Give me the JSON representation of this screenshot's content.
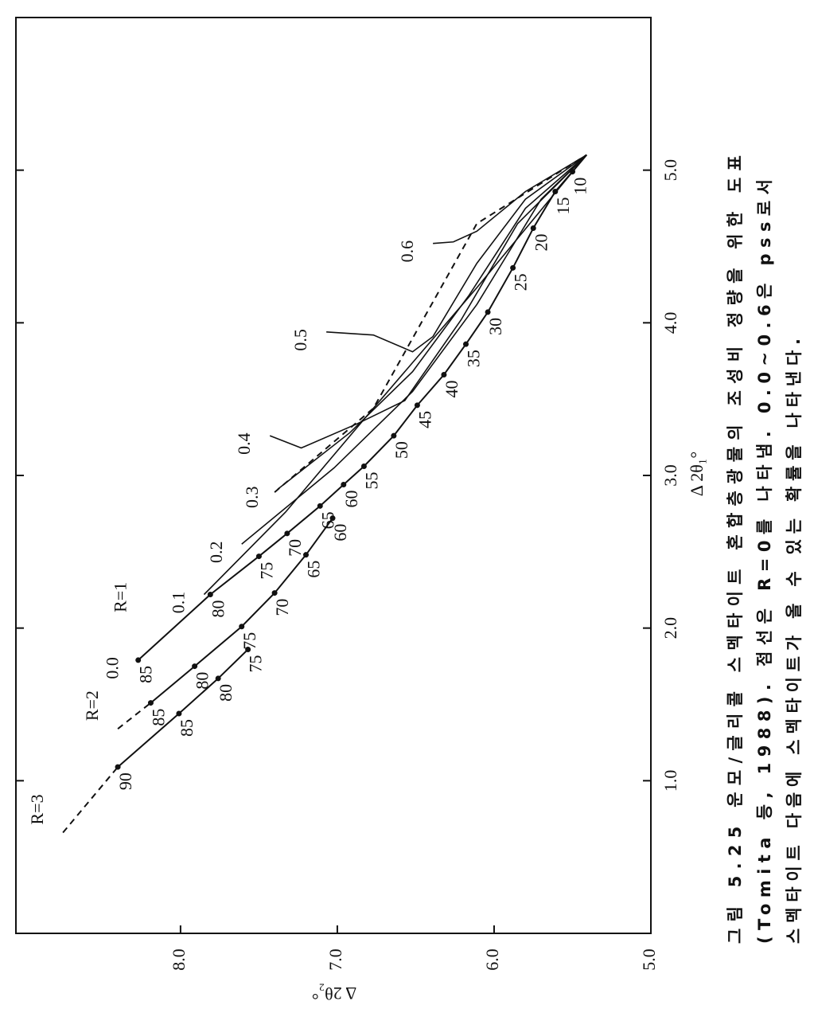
{
  "chart_data": {
    "type": "line",
    "xlabel": "Δ 2θ₁°",
    "ylabel": "Δ 2θ₂°",
    "xlim": [
      0,
      6.0
    ],
    "ylim": [
      5.0,
      9.05
    ],
    "xticks": [
      {
        "value": 1,
        "label": "1.0"
      },
      {
        "value": 2,
        "label": "2.0"
      },
      {
        "value": 3,
        "label": "3.0"
      },
      {
        "value": 4,
        "label": "4.0"
      },
      {
        "value": 5,
        "label": "5.0"
      }
    ],
    "yticks": [
      {
        "value": 5,
        "label": "5.0"
      },
      {
        "value": 6,
        "label": "6.0"
      },
      {
        "value": 7,
        "label": "7.0"
      },
      {
        "value": 8,
        "label": "8.0"
      }
    ],
    "color": "#111111",
    "series": [
      {
        "name": "R=1",
        "lead_dashed": false,
        "x": [
          1.79,
          2.22,
          2.47,
          2.62,
          2.8,
          2.94,
          3.06,
          3.26,
          3.46,
          3.66,
          3.86,
          4.07,
          4.36,
          4.62,
          4.86,
          4.99,
          5.1
        ],
        "values": [
          8.27,
          7.81,
          7.5,
          7.32,
          7.11,
          6.96,
          6.83,
          6.64,
          6.49,
          6.32,
          6.18,
          6.04,
          5.88,
          5.75,
          5.61,
          5.5,
          5.41
        ],
        "point_labels": [
          85,
          80,
          75,
          70,
          65,
          60,
          55,
          50,
          45,
          40,
          35,
          30,
          25,
          20,
          15,
          10,
          null
        ]
      },
      {
        "name": "R=2",
        "lead_dashed": true,
        "x": [
          1.34,
          1.51,
          1.75,
          2.01,
          2.23,
          2.48,
          2.72
        ],
        "values": [
          8.4,
          8.19,
          7.91,
          7.61,
          7.4,
          7.2,
          7.03
        ],
        "point_labels": [
          null,
          85,
          80,
          75,
          70,
          65,
          60
        ]
      },
      {
        "name": "R=3",
        "lead_dashed": true,
        "x": [
          0.66,
          1.09,
          1.44,
          1.67,
          1.86
        ],
        "values": [
          8.75,
          8.4,
          8.01,
          7.76,
          7.57
        ],
        "point_labels": [
          null,
          90,
          85,
          80,
          75
        ]
      }
    ],
    "ratio_curves": [
      {
        "name": "0.0",
        "x": [
          1.79
        ],
        "values": [
          8.27
        ]
      },
      {
        "name": "0.1",
        "x": [
          2.22,
          2.76,
          3.44,
          4.23,
          5.1
        ],
        "values": [
          7.85,
          7.33,
          6.77,
          6.11,
          5.41
        ]
      },
      {
        "name": "0.2",
        "x": [
          2.55,
          3.05,
          3.55,
          4.12,
          4.81,
          5.1
        ],
        "values": [
          7.61,
          7.02,
          6.52,
          6.11,
          5.7,
          5.41
        ]
      },
      {
        "name": "0.3",
        "x": [
          2.91,
          3.28,
          3.68,
          4.18,
          4.75,
          5.1
        ],
        "values": [
          7.38,
          6.92,
          6.52,
          6.16,
          5.8,
          5.41
        ]
      },
      {
        "name": "0.4",
        "x": [
          3.26,
          3.18,
          3.34,
          3.49,
          4.02,
          4.65,
          5.1
        ],
        "values": [
          7.43,
          7.23,
          6.87,
          6.57,
          6.21,
          5.85,
          5.41
        ]
      },
      {
        "name": "0.5",
        "x": [
          3.94,
          3.92,
          3.81,
          3.91,
          4.39,
          4.81,
          5.1
        ],
        "values": [
          7.07,
          6.77,
          6.52,
          6.39,
          6.11,
          5.8,
          5.41
        ]
      },
      {
        "name": "0.6",
        "x": [
          4.52,
          4.53,
          4.6,
          4.86,
          5.1
        ],
        "values": [
          6.39,
          6.26,
          6.11,
          5.8,
          5.41
        ]
      }
    ],
    "r0_line": {
      "x": [
        2.89,
        3.44,
        4.65,
        5.1
      ],
      "values": [
        7.4,
        6.77,
        6.11,
        5.41
      ]
    },
    "caption": [
      "그림 5.25  운모/글리콜 스멕타이트 혼합층광물의 조성비 정량을 위한 도표",
      "(Tomita 등, 1988). 점선은 R=0를 나타냄. 0.0~0.6은 pss로서",
      "스멕타이트 다음에 스멕타이트가 올 수 있는 확률을 나타낸다."
    ]
  }
}
